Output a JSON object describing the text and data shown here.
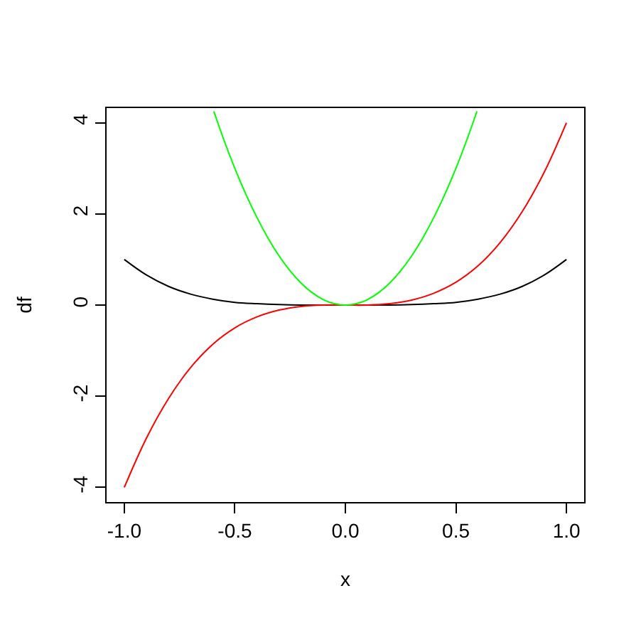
{
  "chart_data": {
    "type": "line",
    "xlabel": "x",
    "ylabel": "df",
    "x": [
      -1,
      -0.9,
      -0.8,
      -0.7,
      -0.6,
      -0.5,
      -0.4,
      -0.3,
      -0.2,
      -0.1,
      0,
      0.1,
      0.2,
      0.3,
      0.4,
      0.5,
      0.6,
      0.7,
      0.8,
      0.9,
      1
    ],
    "series": [
      {
        "color": "#000000",
        "values": [
          1,
          0.66,
          0.41,
          0.24,
          0.13,
          0.06,
          0.03,
          0.01,
          0,
          0,
          0,
          0,
          0,
          0.01,
          0.03,
          0.06,
          0.13,
          0.24,
          0.41,
          0.66,
          1
        ]
      },
      {
        "color": "#ff0000",
        "values": [
          -4,
          -2.92,
          -2.05,
          -1.37,
          -0.86,
          -0.5,
          -0.26,
          -0.11,
          -0.03,
          0,
          0,
          0,
          0.03,
          0.11,
          0.26,
          0.5,
          0.86,
          1.37,
          2.05,
          2.92,
          4
        ]
      },
      {
        "color": "#00ff00",
        "x": [
          -0.595,
          -0.55,
          -0.5,
          -0.45,
          -0.4,
          -0.35,
          -0.3,
          -0.25,
          -0.2,
          -0.15,
          -0.1,
          -0.05,
          0,
          0.05,
          0.1,
          0.15,
          0.2,
          0.25,
          0.3,
          0.35,
          0.4,
          0.45,
          0.5,
          0.55,
          0.595
        ],
        "values": [
          4.25,
          3.63,
          3,
          2.43,
          1.92,
          1.47,
          1.08,
          0.75,
          0.48,
          0.27,
          0.12,
          0.03,
          0,
          0.03,
          0.12,
          0.27,
          0.48,
          0.75,
          1.08,
          1.47,
          1.92,
          2.43,
          3,
          3.63,
          4.25
        ]
      }
    ],
    "xlim": [
      -1.08,
      1.08
    ],
    "ylim": [
      -4.32,
      4.32
    ],
    "xticks": [
      {
        "value": -1,
        "label": "-1.0"
      },
      {
        "value": -0.5,
        "label": "-0.5"
      },
      {
        "value": 0,
        "label": "0.0"
      },
      {
        "value": 0.5,
        "label": "0.5"
      },
      {
        "value": 1,
        "label": "1.0"
      }
    ],
    "yticks": [
      -4,
      -2,
      0,
      2,
      4
    ],
    "line_style": "solid"
  }
}
